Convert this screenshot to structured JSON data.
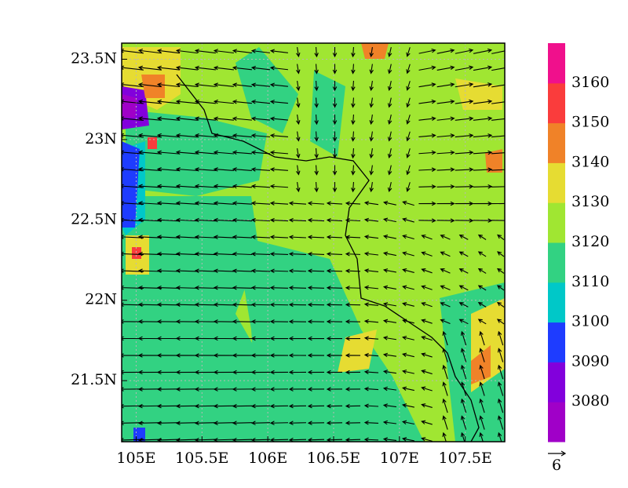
{
  "chart_data": {
    "type": "contour",
    "xlim": [
      104.89,
      107.8
    ],
    "ylim": [
      21.12,
      23.6
    ],
    "xticks": [
      {
        "value": 105,
        "label": "105E"
      },
      {
        "value": 105.5,
        "label": "105.5E"
      },
      {
        "value": 106,
        "label": "106E"
      },
      {
        "value": 106.5,
        "label": "106.5E"
      },
      {
        "value": 107,
        "label": "107E"
      },
      {
        "value": 107.5,
        "label": "107.5E"
      }
    ],
    "yticks": [
      {
        "value": 21.5,
        "label": "21.5N"
      },
      {
        "value": 22,
        "label": "22N"
      },
      {
        "value": 22.5,
        "label": "22.5N"
      },
      {
        "value": 23,
        "label": "23N"
      },
      {
        "value": 23.5,
        "label": "23.5N"
      }
    ],
    "levels": [
      3080,
      3090,
      3100,
      3110,
      3120,
      3130,
      3140,
      3150,
      3160
    ],
    "colors": [
      "#a000c8",
      "#8200dc",
      "#1e3cff",
      "#00c8c8",
      "#32d282",
      "#a0e632",
      "#e6dc32",
      "#f08228",
      "#fa3c3c",
      "#f0108c"
    ],
    "vector_reference": 6
  }
}
